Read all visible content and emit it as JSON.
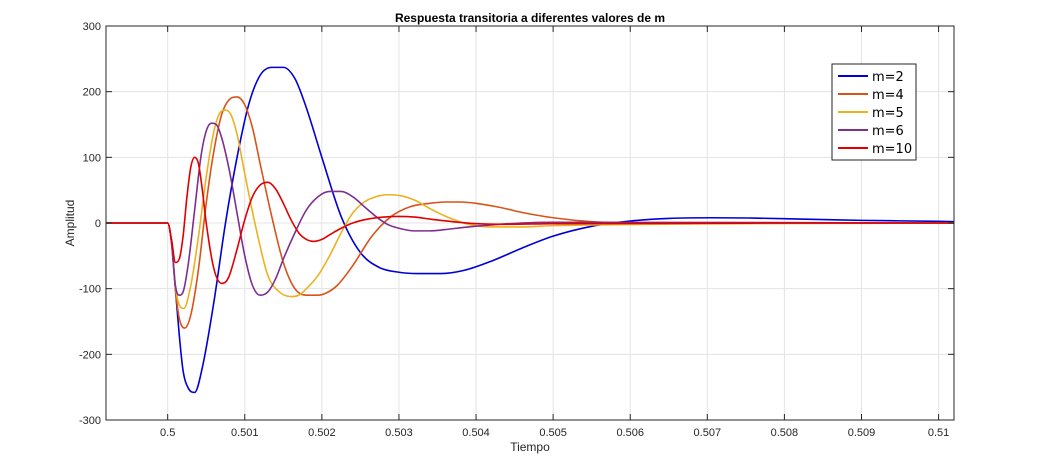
{
  "chart_data": {
    "type": "line",
    "title": "Respuesta transitoria a diferentes valores de m",
    "xlabel": "Tiempo",
    "ylabel": "Amplitud",
    "xlim": [
      0.4992,
      0.5102
    ],
    "ylim": [
      -300,
      300
    ],
    "xticks": [
      0.5,
      0.501,
      0.502,
      0.503,
      0.504,
      0.505,
      0.506,
      0.507,
      0.508,
      0.509,
      0.51
    ],
    "xtick_labels": [
      "0.5",
      "0.501",
      "0.502",
      "0.503",
      "0.504",
      "0.505",
      "0.506",
      "0.507",
      "0.508",
      "0.509",
      "0.51"
    ],
    "yticks": [
      -300,
      -200,
      -100,
      0,
      100,
      200,
      300
    ],
    "ytick_labels": [
      "-300",
      "-200",
      "-100",
      "0",
      "100",
      "200",
      "300"
    ],
    "grid": true,
    "legend_position": "top-right",
    "series": [
      {
        "name": "m=2",
        "color": "#0000d6",
        "x": [
          0.4992,
          0.5,
          0.50005,
          0.5001,
          0.50015,
          0.5002,
          0.50027,
          0.50035,
          0.50045,
          0.5006,
          0.50075,
          0.5009,
          0.50105,
          0.5012,
          0.50135,
          0.5015,
          0.50165,
          0.5018,
          0.502,
          0.50225,
          0.5025,
          0.50275,
          0.503,
          0.50325,
          0.50355,
          0.50385,
          0.5042,
          0.5046,
          0.505,
          0.5055,
          0.506,
          0.5065,
          0.50705,
          0.5076,
          0.5082,
          0.509,
          0.51,
          0.5102
        ],
        "y": [
          0,
          0,
          -30,
          -100,
          -170,
          -225,
          -252,
          -258,
          -220,
          -120,
          0,
          100,
          180,
          225,
          237,
          237,
          220,
          175,
          100,
          10,
          -45,
          -68,
          -75,
          -77,
          -77,
          -72,
          -58,
          -38,
          -20,
          -5,
          3,
          7,
          8,
          7.5,
          6,
          4,
          2.5,
          2
        ]
      },
      {
        "name": "m=4",
        "color": "#d95319",
        "x": [
          0.4992,
          0.5,
          0.50005,
          0.5001,
          0.50015,
          0.50022,
          0.5003,
          0.5004,
          0.5005,
          0.5006,
          0.5007,
          0.5008,
          0.5009,
          0.501,
          0.5011,
          0.5012,
          0.50135,
          0.5015,
          0.50165,
          0.5018,
          0.50195,
          0.50205,
          0.5022,
          0.5024,
          0.50265,
          0.5029,
          0.50315,
          0.5034,
          0.5036,
          0.5038,
          0.504,
          0.5043,
          0.5046,
          0.505,
          0.5055,
          0.506,
          0.5065,
          0.507,
          0.5102
        ],
        "y": [
          0,
          0,
          -30,
          -100,
          -145,
          -160,
          -140,
          -70,
          30,
          110,
          165,
          188,
          192,
          180,
          145,
          90,
          10,
          -60,
          -100,
          -110,
          -110,
          -107,
          -95,
          -65,
          -20,
          10,
          25,
          30,
          32,
          32,
          30,
          24,
          16,
          8,
          2,
          0,
          -1,
          -0.5,
          0
        ]
      },
      {
        "name": "m=5",
        "color": "#edb120",
        "x": [
          0.4992,
          0.5,
          0.50005,
          0.5001,
          0.50015,
          0.50021,
          0.5003,
          0.5004,
          0.5005,
          0.5006,
          0.50068,
          0.50075,
          0.50082,
          0.5009,
          0.501,
          0.50115,
          0.5013,
          0.50145,
          0.5016,
          0.5017,
          0.5018,
          0.50195,
          0.5021,
          0.50225,
          0.5024,
          0.50255,
          0.5027,
          0.50285,
          0.503,
          0.5032,
          0.5034,
          0.50365,
          0.5039,
          0.5042,
          0.5046,
          0.505,
          0.5102
        ],
        "y": [
          0,
          0,
          -30,
          -95,
          -125,
          -130,
          -95,
          -20,
          70,
          140,
          168,
          172,
          165,
          135,
          75,
          -10,
          -80,
          -105,
          -112,
          -110,
          -100,
          -80,
          -50,
          -15,
          15,
          32,
          40,
          43,
          42,
          35,
          22,
          8,
          -2,
          -6,
          -6,
          -4,
          0
        ]
      },
      {
        "name": "m=6",
        "color": "#7e2f8e",
        "x": [
          0.4992,
          0.5,
          0.50005,
          0.5001,
          0.50015,
          0.5002,
          0.50027,
          0.50035,
          0.50043,
          0.5005,
          0.50057,
          0.50063,
          0.5007,
          0.5008,
          0.5009,
          0.501,
          0.5011,
          0.5012,
          0.5013,
          0.5014,
          0.5015,
          0.50165,
          0.5018,
          0.50195,
          0.5021,
          0.50225,
          0.5024,
          0.50255,
          0.5027,
          0.50285,
          0.503,
          0.5032,
          0.5034,
          0.5036,
          0.5039,
          0.5042,
          0.5046,
          0.505,
          0.5102
        ],
        "y": [
          0,
          0,
          -30,
          -95,
          -110,
          -105,
          -60,
          20,
          100,
          140,
          152,
          150,
          130,
          80,
          15,
          -50,
          -95,
          -110,
          -105,
          -85,
          -55,
          -15,
          20,
          40,
          48,
          48,
          40,
          25,
          10,
          -2,
          -8,
          -12,
          -12,
          -10,
          -6,
          -3,
          0,
          1,
          0
        ]
      },
      {
        "name": "m=10",
        "color": "#e00000",
        "x": [
          0.4992,
          0.5,
          0.50005,
          0.5001,
          0.50015,
          0.5002,
          0.50025,
          0.5003,
          0.50035,
          0.5004,
          0.50045,
          0.5005,
          0.5006,
          0.5007,
          0.50075,
          0.5008,
          0.5009,
          0.501,
          0.5011,
          0.5012,
          0.5013,
          0.5014,
          0.5015,
          0.5016,
          0.5017,
          0.5018,
          0.5019,
          0.502,
          0.5021,
          0.50225,
          0.5024,
          0.5026,
          0.5028,
          0.503,
          0.5032,
          0.5034,
          0.5037,
          0.504,
          0.5044,
          0.505,
          0.5102
        ],
        "y": [
          0,
          0,
          -25,
          -60,
          -55,
          -20,
          40,
          85,
          100,
          90,
          50,
          0,
          -70,
          -92,
          -90,
          -80,
          -40,
          5,
          40,
          58,
          62,
          52,
          30,
          5,
          -15,
          -25,
          -28,
          -25,
          -18,
          -8,
          0,
          6,
          9,
          10,
          9,
          6,
          2,
          -1,
          -2,
          -1,
          0
        ]
      }
    ]
  }
}
